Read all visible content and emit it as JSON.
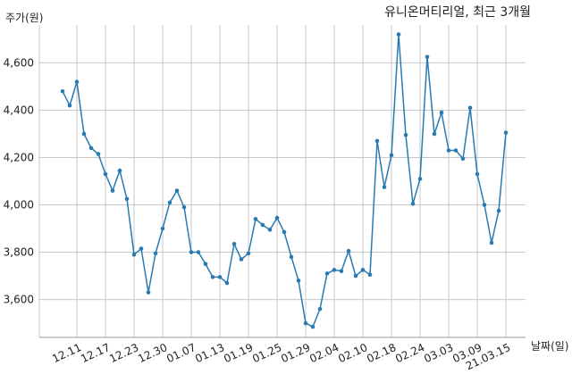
{
  "chart_data": {
    "type": "line",
    "title": "유니온머티리얼, 최근 3개월",
    "ylabel": "주가(원)",
    "xlabel": "날짜(일)",
    "ylim": [
      3440,
      4760
    ],
    "yticks": [
      3600,
      3800,
      4000,
      4200,
      4400,
      4600
    ],
    "ytick_labels": [
      "3,600",
      "3,800",
      "4,000",
      "4,200",
      "4,400",
      "4,600"
    ],
    "xticks": [
      {
        "label": "12.11",
        "index": 2
      },
      {
        "label": "12.17",
        "index": 6
      },
      {
        "label": "12.23",
        "index": 10
      },
      {
        "label": "12.30",
        "index": 14
      },
      {
        "label": "01.07",
        "index": 18
      },
      {
        "label": "01.13",
        "index": 22
      },
      {
        "label": "01.19",
        "index": 26
      },
      {
        "label": "01.25",
        "index": 30
      },
      {
        "label": "01.29",
        "index": 34
      },
      {
        "label": "02.04",
        "index": 38
      },
      {
        "label": "02.10",
        "index": 42
      },
      {
        "label": "02.18",
        "index": 46
      },
      {
        "label": "02.24",
        "index": 50
      },
      {
        "label": "03.03",
        "index": 54
      },
      {
        "label": "03.09",
        "index": 58
      },
      {
        "label": "21.03.15",
        "index": 62
      }
    ],
    "grid": true,
    "line_color": "#2a7ab0",
    "values": [
      4480,
      4420,
      4520,
      4300,
      4240,
      4215,
      4130,
      4060,
      4145,
      4025,
      3790,
      3815,
      3630,
      3795,
      3900,
      4010,
      4060,
      3990,
      3800,
      3800,
      3750,
      3695,
      3695,
      3670,
      3835,
      3770,
      3795,
      3940,
      3915,
      3895,
      3945,
      3885,
      3780,
      3680,
      3500,
      3485,
      3560,
      3710,
      3725,
      3720,
      3805,
      3700,
      3725,
      3705,
      4270,
      4075,
      4210,
      4720,
      4295,
      4005,
      4110,
      4625,
      4300,
      4390,
      4230,
      4230,
      4195,
      4410,
      4130,
      4000,
      3840,
      3975,
      4305
    ]
  }
}
